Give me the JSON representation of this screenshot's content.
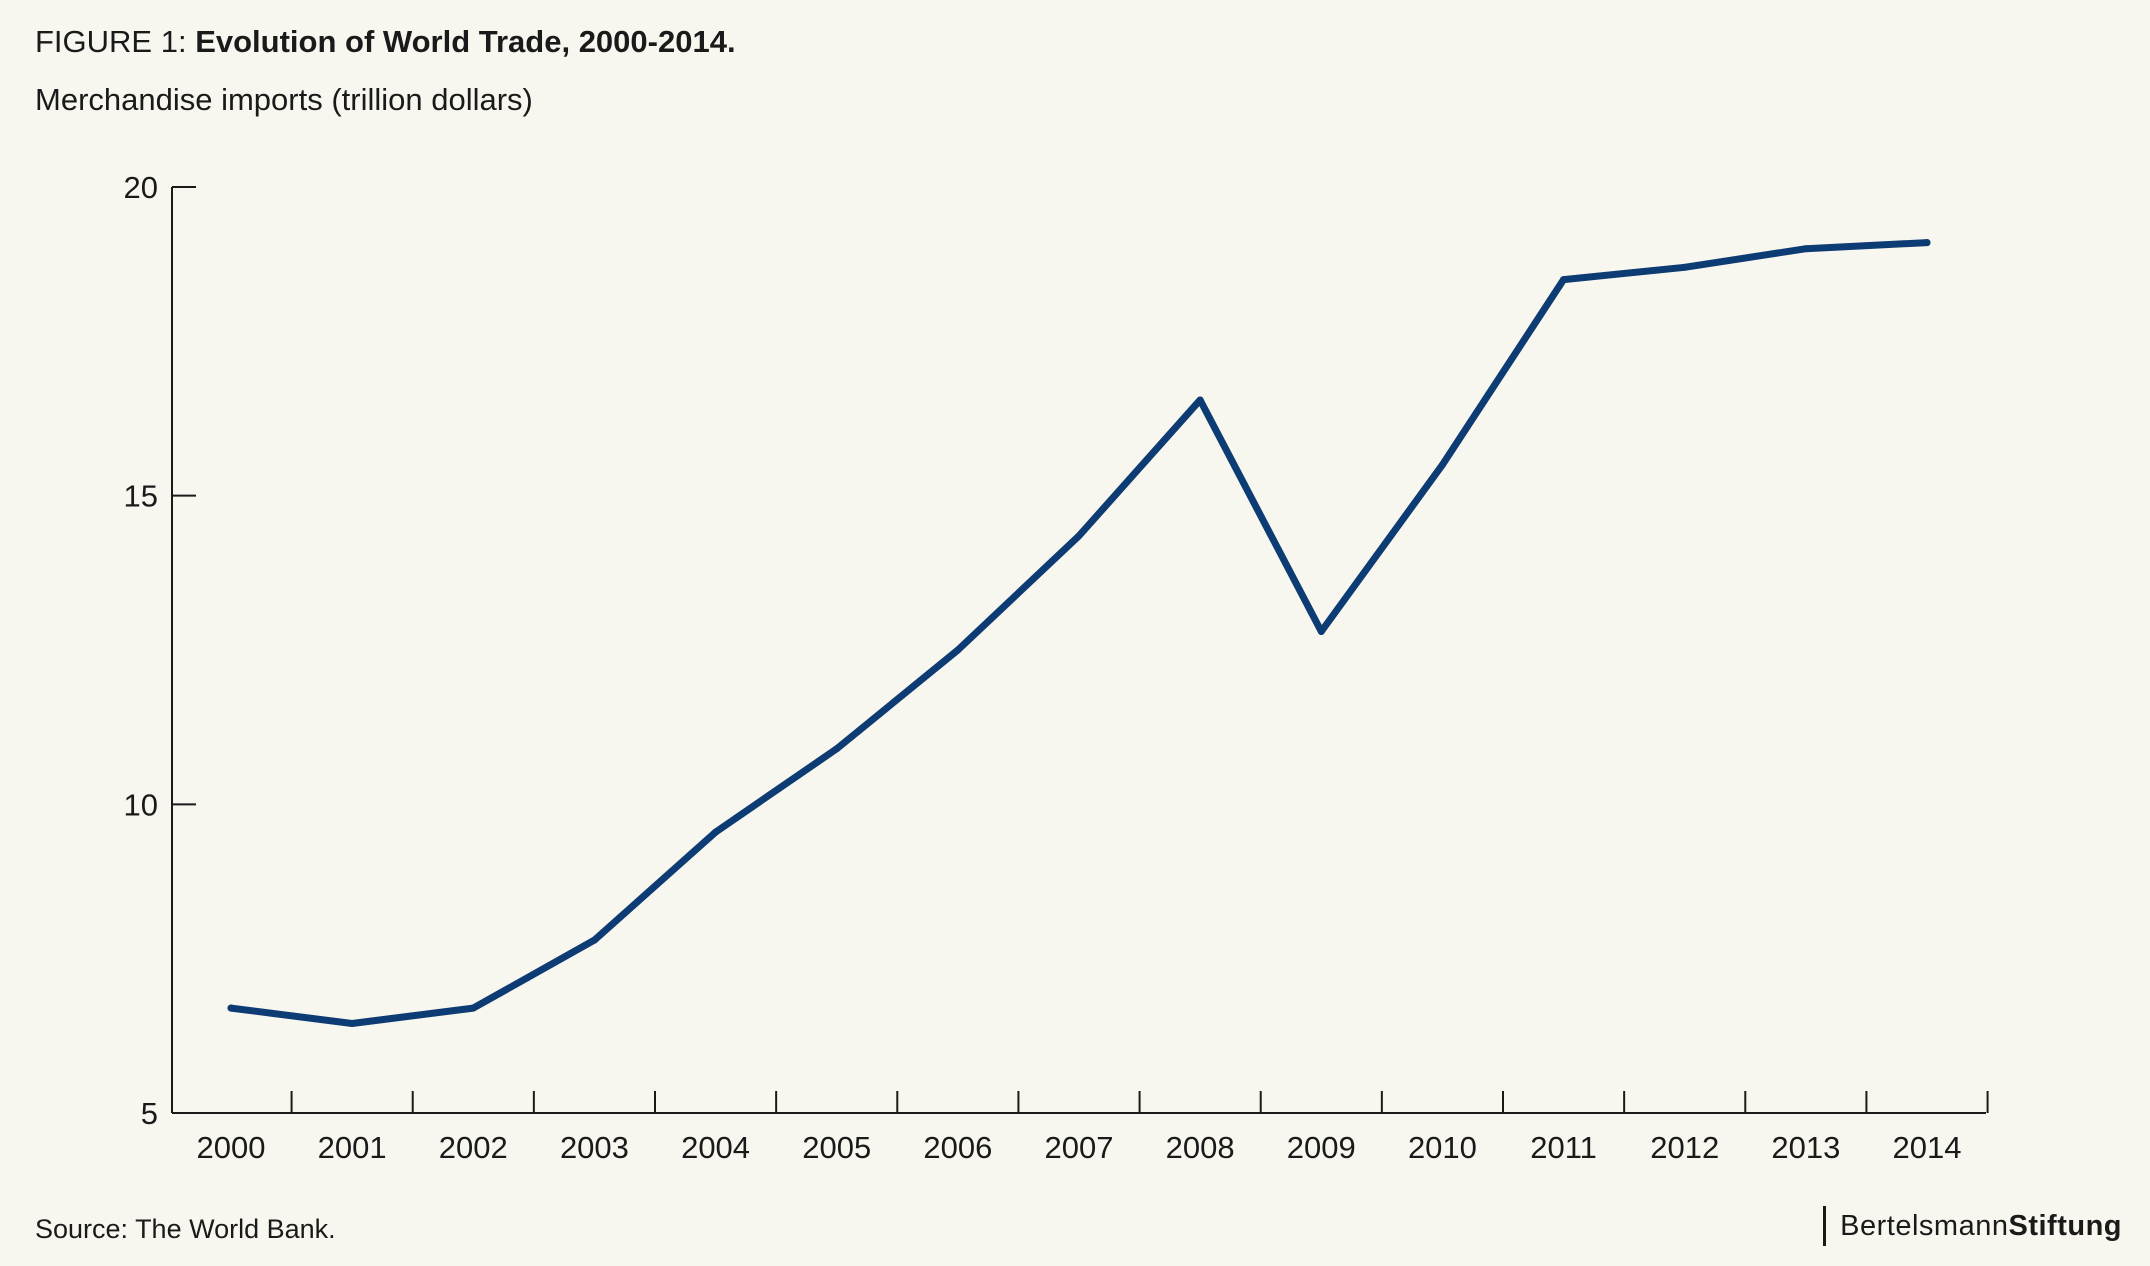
{
  "header": {
    "figure_prefix": "FIGURE 1: ",
    "figure_title": "Evolution of World Trade, 2000-2014.",
    "subtitle": "Merchandise imports (trillion dollars)"
  },
  "footer": {
    "source": "Source: The World Bank.",
    "brand_light": "Bertelsmann",
    "brand_bold": "Stiftung"
  },
  "colors": {
    "line": "#0d3b73",
    "axis": "#1a1a1a",
    "background": "#f8f7ef"
  },
  "chart_data": {
    "type": "line",
    "title": "Evolution of World Trade, 2000-2014.",
    "ylabel": "Merchandise imports (trillion dollars)",
    "xlabel": "",
    "categories": [
      "2000",
      "2001",
      "2002",
      "2003",
      "2004",
      "2005",
      "2006",
      "2007",
      "2008",
      "2009",
      "2010",
      "2011",
      "2012",
      "2013",
      "2014"
    ],
    "series": [
      {
        "values": [
          6.7,
          6.45,
          6.7,
          7.8,
          9.55,
          10.9,
          12.5,
          14.35,
          16.55,
          12.8,
          15.5,
          18.5,
          18.7,
          19.0,
          19.1
        ]
      }
    ],
    "ylim": [
      5,
      20
    ],
    "yticks": [
      5,
      10,
      15,
      20
    ],
    "grid": false,
    "legend": "none"
  }
}
